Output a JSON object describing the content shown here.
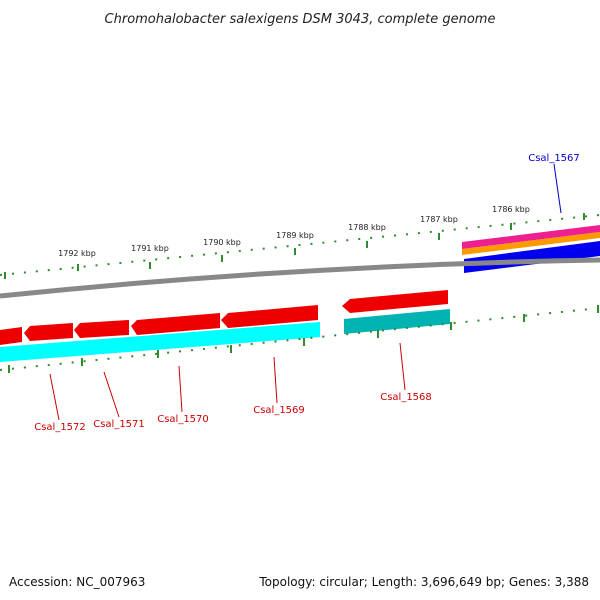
{
  "header": {
    "title": "Chromohalobacter salexigens DSM 3043, complete genome"
  },
  "footer": {
    "accession": "Accession: NC_007963",
    "stats": "Topology: circular; Length: 3,696,649 bp; Genes: 3,388"
  },
  "ruler": {
    "labels": [
      "1792 kbp",
      "1791 kbp",
      "1790 kbp",
      "1789 kbp",
      "1788 kbp",
      "1787 kbp",
      "1786 kbp"
    ]
  },
  "genes": [
    {
      "name": "Csal_1567",
      "strand": "+",
      "color": "#0000cc"
    },
    {
      "name": "Csal_1568",
      "strand": "-",
      "color": "#cc0000"
    },
    {
      "name": "Csal_1569",
      "strand": "-",
      "color": "#cc0000"
    },
    {
      "name": "Csal_1570",
      "strand": "-",
      "color": "#cc0000"
    },
    {
      "name": "Csal_1571",
      "strand": "-",
      "color": "#cc0000"
    },
    {
      "name": "Csal_1572",
      "strand": "-",
      "color": "#cc0000"
    }
  ],
  "colors": {
    "forward_cds": "#0000ee",
    "reverse_cds": "#ee0000",
    "backbone": "#888888",
    "ticks": "#2e8b2e",
    "cyan_track": "#00ffff",
    "teal_track": "#00b3b3",
    "magenta_track": "#ee1f8f",
    "orange_track": "#ff9900"
  }
}
